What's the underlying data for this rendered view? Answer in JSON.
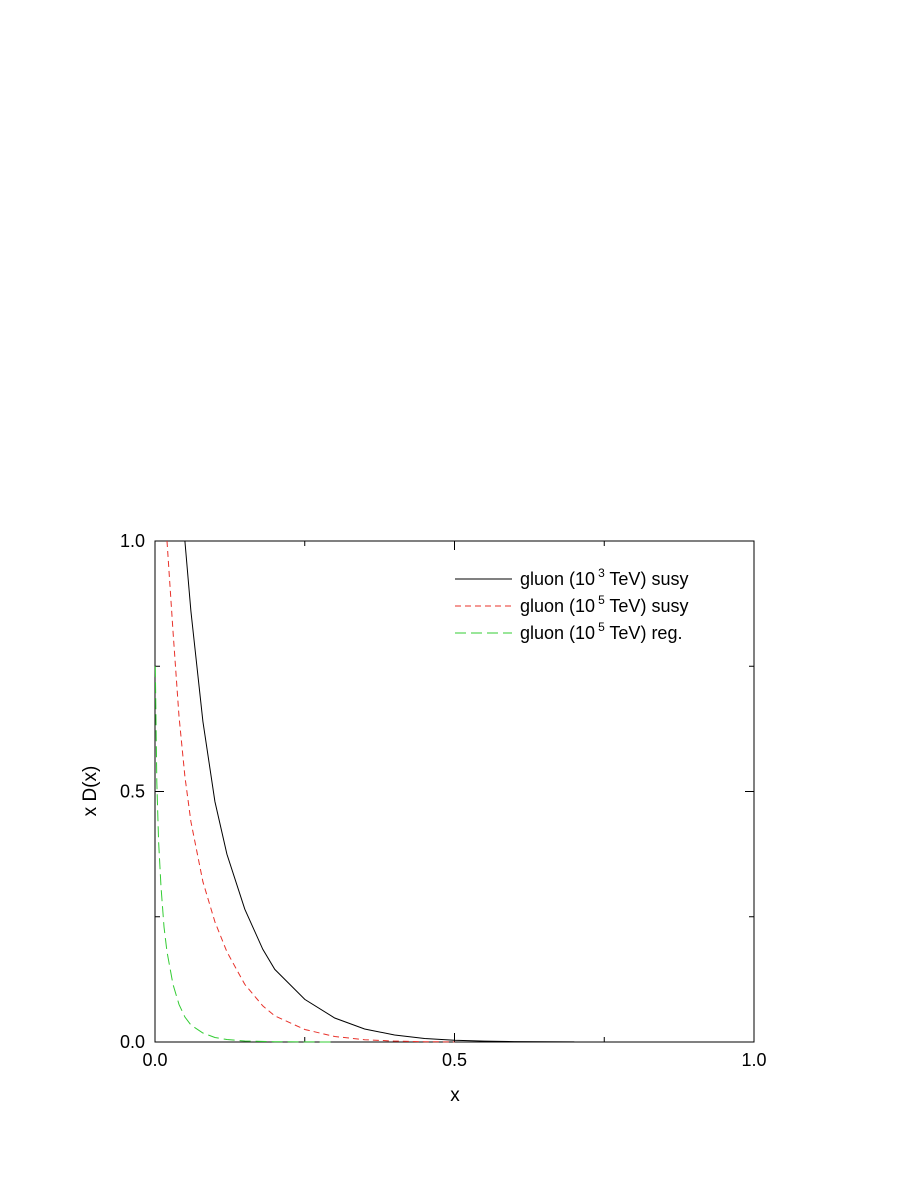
{
  "chart_data": {
    "type": "line",
    "title": "",
    "xlabel": "x",
    "ylabel": "x D(x)",
    "xlim": [
      0.0,
      1.0
    ],
    "ylim": [
      0.0,
      1.0
    ],
    "x_ticks": [
      "0.0",
      "0.5",
      "1.0"
    ],
    "y_ticks": [
      "0.0",
      "0.5",
      "1.0"
    ],
    "grid": false,
    "legend_position": "top-right",
    "series": [
      {
        "name": "gluon (10 3 TeV) susy",
        "legend": {
          "prefix": "gluon (10",
          "exp": "3",
          "suffix": " TeV) susy"
        },
        "color": "#000000",
        "style": "solid",
        "x": [
          0.05,
          0.06,
          0.08,
          0.1,
          0.12,
          0.15,
          0.18,
          0.2,
          0.25,
          0.3,
          0.35,
          0.4,
          0.45,
          0.5,
          0.55,
          0.6,
          0.65,
          0.7
        ],
        "y": [
          1.0,
          0.86,
          0.64,
          0.48,
          0.375,
          0.265,
          0.185,
          0.145,
          0.085,
          0.048,
          0.026,
          0.014,
          0.007,
          0.0035,
          0.0017,
          0.0008,
          0.0003,
          0.0001
        ]
      },
      {
        "name": "gluon (10 5 TeV) susy",
        "legend": {
          "prefix": "gluon (10",
          "exp": "5",
          "suffix": " TeV) susy"
        },
        "color": "#e8312a",
        "style": "dashed",
        "x": [
          0.02,
          0.03,
          0.04,
          0.05,
          0.06,
          0.08,
          0.1,
          0.12,
          0.15,
          0.18,
          0.2,
          0.25,
          0.3,
          0.35,
          0.4,
          0.45,
          0.5
        ],
        "y": [
          1.0,
          0.82,
          0.65,
          0.53,
          0.44,
          0.32,
          0.24,
          0.18,
          0.115,
          0.072,
          0.052,
          0.025,
          0.011,
          0.0045,
          0.0018,
          0.0006,
          0.0002
        ]
      },
      {
        "name": "gluon (10 5 TeV) reg.",
        "legend": {
          "prefix": "gluon (10",
          "exp": "5",
          "suffix": " TeV) reg."
        },
        "color": "#33cc33",
        "style": "long-dashed",
        "x": [
          0.0005,
          0.003,
          0.006,
          0.01,
          0.015,
          0.02,
          0.03,
          0.04,
          0.05,
          0.06,
          0.08,
          0.1,
          0.12,
          0.15,
          0.2,
          0.25,
          0.3
        ],
        "y": [
          0.75,
          0.52,
          0.4,
          0.31,
          0.23,
          0.18,
          0.115,
          0.075,
          0.05,
          0.034,
          0.018,
          0.009,
          0.005,
          0.002,
          0.0005,
          0.0001,
          0.0
        ]
      }
    ]
  }
}
